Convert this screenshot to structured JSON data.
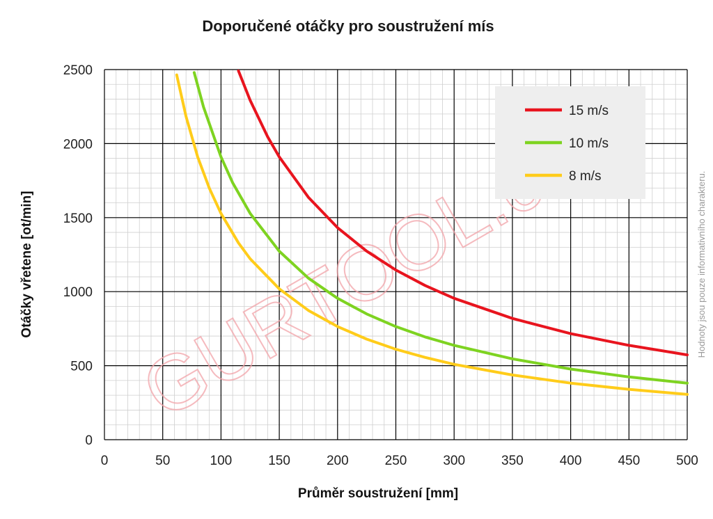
{
  "chart_data": {
    "type": "line",
    "title": "Doporučené otáčky pro soustružení mís",
    "xlabel": "Průměr soustružení [mm]",
    "ylabel": "Otáčky vřetene [ot/min]",
    "xlim": [
      0,
      500
    ],
    "ylim": [
      0,
      2500
    ],
    "xticks": [
      "0",
      "50",
      "100",
      "150",
      "200",
      "250",
      "300",
      "350",
      "400",
      "450",
      "500"
    ],
    "yticks": [
      "0",
      "500",
      "1000",
      "1500",
      "2000",
      "2500"
    ],
    "grid": true,
    "legend_position": "top-right",
    "series": [
      {
        "name": "15 m/s",
        "color": "#e8141e",
        "points": [
          [
            115,
            2491
          ],
          [
            125,
            2292
          ],
          [
            140,
            2046
          ],
          [
            150,
            1910
          ],
          [
            175,
            1637
          ],
          [
            200,
            1432
          ],
          [
            225,
            1273
          ],
          [
            250,
            1146
          ],
          [
            275,
            1042
          ],
          [
            300,
            955
          ],
          [
            350,
            819
          ],
          [
            400,
            716
          ],
          [
            450,
            637
          ],
          [
            500,
            573
          ]
        ]
      },
      {
        "name": "10 m/s",
        "color": "#7ed321",
        "points": [
          [
            77,
            2480
          ],
          [
            85,
            2247
          ],
          [
            100,
            1910
          ],
          [
            110,
            1736
          ],
          [
            125,
            1528
          ],
          [
            150,
            1273
          ],
          [
            175,
            1091
          ],
          [
            200,
            955
          ],
          [
            225,
            849
          ],
          [
            250,
            764
          ],
          [
            275,
            694
          ],
          [
            300,
            637
          ],
          [
            350,
            546
          ],
          [
            400,
            477
          ],
          [
            450,
            424
          ],
          [
            500,
            382
          ]
        ]
      },
      {
        "name": "8 m/s",
        "color": "#ffcc1a",
        "points": [
          [
            62,
            2464
          ],
          [
            70,
            2183
          ],
          [
            80,
            1910
          ],
          [
            90,
            1698
          ],
          [
            100,
            1528
          ],
          [
            115,
            1329
          ],
          [
            125,
            1222
          ],
          [
            150,
            1019
          ],
          [
            175,
            873
          ],
          [
            200,
            764
          ],
          [
            225,
            679
          ],
          [
            250,
            611
          ],
          [
            275,
            556
          ],
          [
            300,
            509
          ],
          [
            350,
            437
          ],
          [
            400,
            382
          ],
          [
            450,
            340
          ],
          [
            500,
            306
          ]
        ]
      }
    ],
    "watermark": "GURTOOL.cz",
    "side_note": "Hodnoty jsou pouze informativního charakteru."
  }
}
